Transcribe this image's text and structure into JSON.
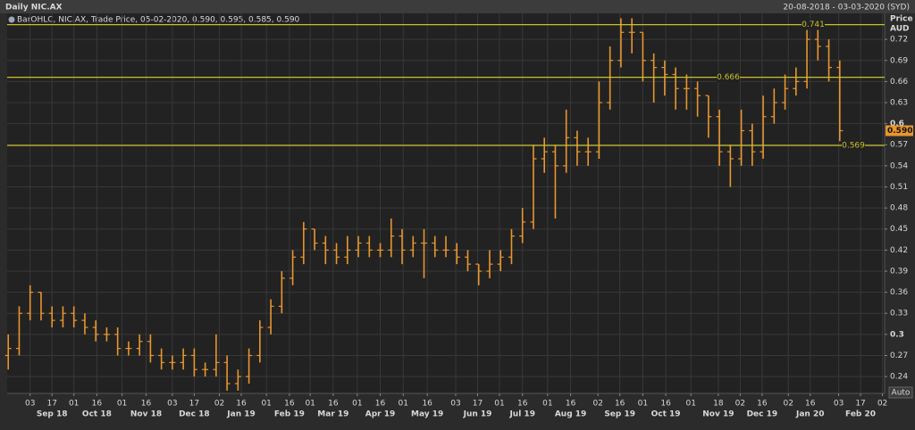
{
  "chart_data": {
    "type": "ohlc",
    "title": "Daily NIC.AX",
    "date_range": "20-08-2018 - 03-03-2020 (SYD)",
    "legend": "BarOHLC, NIC.AX, Trade Price, 05-02-2020, 0.590, 0.595, 0.585, 0.590",
    "y_axis_label": "Price",
    "y_axis_unit": "AUD",
    "scale_mode": "Auto",
    "color": "#e8962e",
    "level_color": "#c9c12a",
    "grid": true,
    "x": [
      0,
      1,
      2,
      3,
      4,
      5,
      6,
      7,
      8,
      9,
      10,
      11,
      12,
      13,
      14,
      15,
      16,
      17,
      18,
      19,
      20,
      21,
      22,
      23,
      24,
      25,
      26,
      27,
      28,
      29,
      30,
      31,
      32,
      33,
      34,
      35,
      36,
      37,
      38,
      39,
      40,
      41,
      42,
      43,
      44,
      45,
      46,
      47,
      48,
      49,
      50,
      51,
      52,
      53,
      54,
      55,
      56,
      57,
      58,
      59,
      60,
      61,
      62,
      63,
      64,
      65,
      66,
      67,
      68,
      69,
      70,
      71,
      72,
      73,
      74,
      75,
      76
    ],
    "open": [
      0.27,
      0.28,
      0.33,
      0.36,
      0.33,
      0.32,
      0.33,
      0.32,
      0.31,
      0.3,
      0.3,
      0.28,
      0.28,
      0.29,
      0.27,
      0.26,
      0.26,
      0.27,
      0.25,
      0.25,
      0.26,
      0.23,
      0.24,
      0.27,
      0.31,
      0.34,
      0.38,
      0.41,
      0.45,
      0.43,
      0.42,
      0.41,
      0.42,
      0.43,
      0.42,
      0.42,
      0.44,
      0.42,
      0.43,
      0.43,
      0.42,
      0.42,
      0.41,
      0.4,
      0.39,
      0.4,
      0.41,
      0.44,
      0.46,
      0.55,
      0.56,
      0.54,
      0.58,
      0.56,
      0.56,
      0.63,
      0.69,
      0.73,
      0.73,
      0.69,
      0.68,
      0.67,
      0.65,
      0.65,
      0.64,
      0.61,
      0.56,
      0.55,
      0.59,
      0.56,
      0.61,
      0.63,
      0.65,
      0.66,
      0.72,
      0.71,
      0.68
    ],
    "high": [
      0.3,
      0.34,
      0.37,
      0.36,
      0.34,
      0.34,
      0.34,
      0.33,
      0.32,
      0.31,
      0.31,
      0.29,
      0.3,
      0.3,
      0.28,
      0.27,
      0.28,
      0.28,
      0.26,
      0.3,
      0.27,
      0.25,
      0.28,
      0.32,
      0.35,
      0.39,
      0.42,
      0.46,
      0.45,
      0.44,
      0.43,
      0.44,
      0.44,
      0.44,
      0.43,
      0.465,
      0.45,
      0.44,
      0.45,
      0.44,
      0.44,
      0.43,
      0.42,
      0.4,
      0.42,
      0.42,
      0.45,
      0.48,
      0.57,
      0.58,
      0.57,
      0.62,
      0.59,
      0.58,
      0.66,
      0.71,
      0.75,
      0.75,
      0.73,
      0.7,
      0.69,
      0.68,
      0.67,
      0.66,
      0.64,
      0.62,
      0.57,
      0.62,
      0.6,
      0.64,
      0.65,
      0.67,
      0.68,
      0.741,
      0.74,
      0.72,
      0.69
    ],
    "low": [
      0.25,
      0.27,
      0.32,
      0.32,
      0.31,
      0.31,
      0.31,
      0.3,
      0.29,
      0.29,
      0.27,
      0.27,
      0.27,
      0.26,
      0.25,
      0.25,
      0.25,
      0.24,
      0.24,
      0.24,
      0.22,
      0.22,
      0.23,
      0.26,
      0.3,
      0.33,
      0.37,
      0.4,
      0.42,
      0.4,
      0.4,
      0.4,
      0.41,
      0.41,
      0.41,
      0.41,
      0.4,
      0.41,
      0.38,
      0.41,
      0.41,
      0.4,
      0.39,
      0.37,
      0.38,
      0.39,
      0.4,
      0.43,
      0.45,
      0.53,
      0.465,
      0.53,
      0.54,
      0.54,
      0.55,
      0.62,
      0.68,
      0.7,
      0.66,
      0.63,
      0.64,
      0.62,
      0.62,
      0.61,
      0.58,
      0.54,
      0.51,
      0.54,
      0.54,
      0.55,
      0.6,
      0.62,
      0.64,
      0.65,
      0.69,
      0.66,
      0.575
    ],
    "close": [
      0.28,
      0.33,
      0.36,
      0.33,
      0.32,
      0.33,
      0.32,
      0.31,
      0.3,
      0.3,
      0.28,
      0.28,
      0.29,
      0.27,
      0.26,
      0.26,
      0.27,
      0.25,
      0.25,
      0.26,
      0.23,
      0.24,
      0.27,
      0.31,
      0.34,
      0.38,
      0.41,
      0.45,
      0.43,
      0.42,
      0.41,
      0.42,
      0.43,
      0.42,
      0.42,
      0.44,
      0.42,
      0.43,
      0.43,
      0.42,
      0.42,
      0.41,
      0.4,
      0.39,
      0.4,
      0.41,
      0.44,
      0.46,
      0.55,
      0.56,
      0.54,
      0.58,
      0.56,
      0.56,
      0.63,
      0.69,
      0.73,
      0.73,
      0.69,
      0.68,
      0.67,
      0.65,
      0.65,
      0.64,
      0.61,
      0.56,
      0.55,
      0.59,
      0.56,
      0.61,
      0.63,
      0.65,
      0.66,
      0.72,
      0.71,
      0.68,
      0.59
    ],
    "levels": [
      0.741,
      0.666,
      0.569
    ],
    "last_price": {
      "value": 0.59,
      "label": "0.590"
    },
    "xlim": [
      -0.1,
      80.1
    ],
    "xticks": [
      {
        "value": 2,
        "label": "03"
      },
      {
        "value": 4,
        "label": "17"
      },
      {
        "value": 6,
        "label": "01"
      },
      {
        "value": 8.1,
        "label": "16"
      },
      {
        "value": 10.4,
        "label": "01"
      },
      {
        "value": 12.6,
        "label": "16"
      },
      {
        "value": 15,
        "label": "03"
      },
      {
        "value": 17,
        "label": "17"
      },
      {
        "value": 19.3,
        "label": "02"
      },
      {
        "value": 21.3,
        "label": "16"
      },
      {
        "value": 23.6,
        "label": "01"
      },
      {
        "value": 25.7,
        "label": "16"
      },
      {
        "value": 27.6,
        "label": "01"
      },
      {
        "value": 29.7,
        "label": "16"
      },
      {
        "value": 31.9,
        "label": "01"
      },
      {
        "value": 34,
        "label": "16"
      },
      {
        "value": 36.1,
        "label": "01"
      },
      {
        "value": 38.3,
        "label": "16"
      },
      {
        "value": 40.9,
        "label": "03"
      },
      {
        "value": 42.9,
        "label": "17"
      },
      {
        "value": 44.9,
        "label": "01"
      },
      {
        "value": 47,
        "label": "16"
      },
      {
        "value": 49.3,
        "label": "01"
      },
      {
        "value": 51.4,
        "label": "16"
      },
      {
        "value": 53.9,
        "label": "02"
      },
      {
        "value": 55.9,
        "label": "16"
      },
      {
        "value": 58,
        "label": "01"
      },
      {
        "value": 60.1,
        "label": "16"
      },
      {
        "value": 62.4,
        "label": "01"
      },
      {
        "value": 64.9,
        "label": "18"
      },
      {
        "value": 66.9,
        "label": "02"
      },
      {
        "value": 68.9,
        "label": "16"
      },
      {
        "value": 71.3,
        "label": "02"
      },
      {
        "value": 73.3,
        "label": "16"
      },
      {
        "value": 75.9,
        "label": "03"
      },
      {
        "value": 77.9,
        "label": "17"
      },
      {
        "value": 79.9,
        "label": "02"
      }
    ],
    "month_ticks": [
      {
        "value": 4,
        "label": "Sep 18"
      },
      {
        "value": 8.1,
        "label": "Oct 18"
      },
      {
        "value": 12.6,
        "label": "Nov 18"
      },
      {
        "value": 17,
        "label": "Dec 18"
      },
      {
        "value": 21.3,
        "label": "Jan 19"
      },
      {
        "value": 25.7,
        "label": "Feb 19"
      },
      {
        "value": 29.7,
        "label": "Mar 19"
      },
      {
        "value": 34,
        "label": "Apr 19"
      },
      {
        "value": 38.3,
        "label": "May 19"
      },
      {
        "value": 42.9,
        "label": "Jun 19"
      },
      {
        "value": 47,
        "label": "Jul 19"
      },
      {
        "value": 51.4,
        "label": "Aug 19"
      },
      {
        "value": 55.9,
        "label": "Sep 19"
      },
      {
        "value": 60.1,
        "label": "Oct 19"
      },
      {
        "value": 64.9,
        "label": "Nov 19"
      },
      {
        "value": 68.9,
        "label": "Dec 19"
      },
      {
        "value": 73.3,
        "label": "Jan 20"
      },
      {
        "value": 77.9,
        "label": "Feb 20"
      }
    ],
    "ylim": [
      0.216,
      0.757
    ],
    "yticks": [
      0.24,
      0.27,
      0.3,
      0.33,
      0.36,
      0.39,
      0.42,
      0.45,
      0.48,
      0.51,
      0.54,
      0.57,
      0.6,
      0.63,
      0.66,
      0.69,
      0.72
    ]
  }
}
